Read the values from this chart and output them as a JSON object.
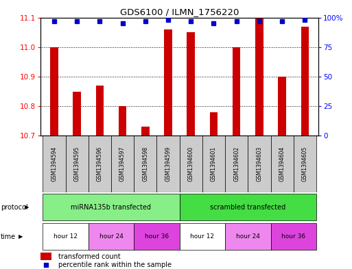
{
  "title": "GDS6100 / ILMN_1756220",
  "samples": [
    "GSM1394594",
    "GSM1394595",
    "GSM1394596",
    "GSM1394597",
    "GSM1394598",
    "GSM1394599",
    "GSM1394600",
    "GSM1394601",
    "GSM1394602",
    "GSM1394603",
    "GSM1394604",
    "GSM1394605"
  ],
  "bar_values": [
    11.0,
    10.85,
    10.87,
    10.8,
    10.73,
    11.06,
    11.05,
    10.78,
    11.0,
    11.13,
    10.9,
    11.07
  ],
  "percentile_values": [
    97,
    97,
    97,
    95,
    97,
    98,
    97,
    95,
    97,
    97,
    97,
    98
  ],
  "ylim_left": [
    10.7,
    11.1
  ],
  "ylim_right": [
    0,
    100
  ],
  "yticks_left": [
    10.7,
    10.8,
    10.9,
    11.0,
    11.1
  ],
  "yticks_right": [
    0,
    25,
    50,
    75,
    100
  ],
  "bar_color": "#cc0000",
  "dot_color": "#0000cc",
  "protocol_groups": [
    {
      "label": "miRNA135b transfected",
      "start": 0,
      "end": 6,
      "color": "#88ee88"
    },
    {
      "label": "scrambled transfected",
      "start": 6,
      "end": 12,
      "color": "#44dd44"
    }
  ],
  "time_colors": {
    "hour 12": "#ffffff",
    "hour 24": "#ee88ee",
    "hour 36": "#dd44dd"
  },
  "time_groups": [
    {
      "label": "hour 12",
      "start": 0,
      "end": 2
    },
    {
      "label": "hour 24",
      "start": 2,
      "end": 4
    },
    {
      "label": "hour 36",
      "start": 4,
      "end": 6
    },
    {
      "label": "hour 12",
      "start": 6,
      "end": 8
    },
    {
      "label": "hour 24",
      "start": 8,
      "end": 10
    },
    {
      "label": "hour 36",
      "start": 10,
      "end": 12
    }
  ],
  "legend_items": [
    {
      "label": "transformed count",
      "color": "#cc0000"
    },
    {
      "label": "percentile rank within the sample",
      "color": "#0000cc"
    }
  ],
  "sample_box_color": "#cccccc",
  "protocol_label": "protocol",
  "time_label": "time",
  "background_color": "#ffffff"
}
